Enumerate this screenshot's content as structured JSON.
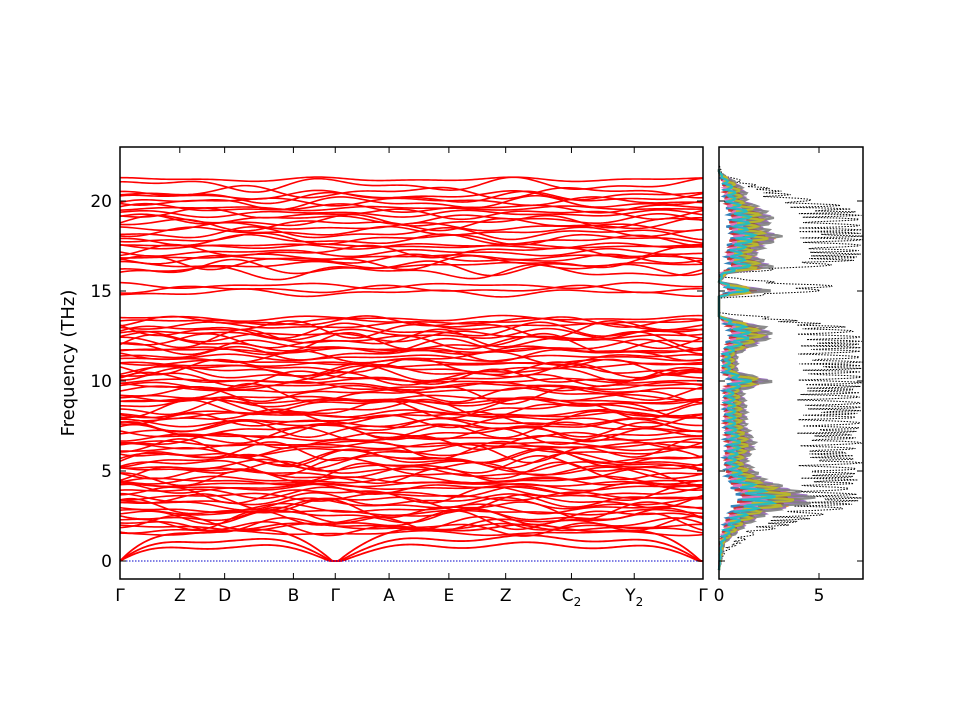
{
  "chart_data": [
    {
      "type": "line",
      "panel": "band-structure",
      "title": "",
      "xlabel": "",
      "ylabel": "Frequency (THz)",
      "ylim": [
        -1.0,
        23.0
      ],
      "yticks": [
        0,
        5,
        10,
        15,
        20
      ],
      "grid": false,
      "line_color": "#ff0000",
      "zero_line_color": "#0000cc",
      "high_symmetry_points": [
        {
          "label": "Γ",
          "sub": "",
          "pos": 0.0
        },
        {
          "label": "Z",
          "sub": "",
          "pos": 1.0
        },
        {
          "label": "D",
          "sub": "",
          "pos": 1.75
        },
        {
          "label": "B",
          "sub": "",
          "pos": 2.9
        },
        {
          "label": "Γ",
          "sub": "",
          "pos": 3.6
        },
        {
          "label": "A",
          "sub": "",
          "pos": 4.5
        },
        {
          "label": "E",
          "sub": "",
          "pos": 5.5
        },
        {
          "label": "Z",
          "sub": "",
          "pos": 6.45
        },
        {
          "label": "C",
          "sub": "2",
          "pos": 7.55
        },
        {
          "label": "Y",
          "sub": "2",
          "pos": 8.6
        },
        {
          "label": "Γ",
          "sub": "",
          "pos": 9.75
        }
      ],
      "bands": {
        "acoustic_max": [
          1.9,
          1.3,
          0.9
        ],
        "low_band_range": [
          1.5,
          13.5
        ],
        "gap": [
          13.5,
          14.7
        ],
        "mid_band_range": [
          14.7,
          15.5
        ],
        "high_band_range": [
          16.0,
          21.6
        ],
        "sample_band_levels": [
          1.8,
          2.1,
          2.5,
          2.9,
          3.3,
          3.7,
          4.1,
          4.5,
          4.9,
          5.3,
          5.7,
          6.1,
          6.5,
          6.9,
          7.3,
          7.7,
          8.1,
          8.5,
          8.9,
          9.3,
          9.7,
          10.1,
          10.5,
          10.9,
          11.3,
          11.7,
          12.1,
          12.5,
          12.9,
          13.3,
          14.9,
          15.1,
          15.3,
          16.3,
          16.6,
          16.9,
          17.2,
          17.5,
          17.9,
          18.3,
          18.7,
          19.0,
          19.3,
          19.6,
          19.9,
          20.2,
          20.5,
          20.9,
          21.2
        ]
      }
    },
    {
      "type": "line",
      "panel": "density-of-states",
      "title": "",
      "xlabel": "",
      "ylabel": "",
      "xlim": [
        0,
        7.2
      ],
      "xticks": [
        0,
        5
      ],
      "ylim": [
        -1.0,
        23.0
      ],
      "grid": false,
      "total_line_color": "#000000",
      "series_colors": [
        "#1f77b4",
        "#ff7f0e",
        "#2ca02c",
        "#d62728",
        "#9467bd",
        "#8c564b",
        "#e377c2",
        "#7f7f7f",
        "#bcbd22",
        "#17becf"
      ],
      "total_dos_profile": [
        [
          -0.5,
          0.0
        ],
        [
          0.5,
          0.3
        ],
        [
          1.5,
          1.8
        ],
        [
          2.0,
          3.5
        ],
        [
          2.5,
          5.0
        ],
        [
          3.0,
          6.5
        ],
        [
          3.5,
          7.2
        ],
        [
          4.0,
          6.5
        ],
        [
          4.5,
          7.0
        ],
        [
          5.0,
          6.8
        ],
        [
          5.5,
          7.2
        ],
        [
          6.0,
          6.5
        ],
        [
          6.5,
          7.2
        ],
        [
          7.0,
          6.8
        ],
        [
          7.5,
          7.2
        ],
        [
          8.0,
          6.9
        ],
        [
          8.5,
          7.2
        ],
        [
          9.0,
          7.1
        ],
        [
          9.5,
          7.0
        ],
        [
          10.0,
          7.2
        ],
        [
          10.5,
          7.1
        ],
        [
          11.0,
          7.2
        ],
        [
          11.5,
          7.0
        ],
        [
          12.0,
          7.2
        ],
        [
          12.5,
          7.1
        ],
        [
          13.0,
          6.5
        ],
        [
          13.5,
          3.0
        ],
        [
          13.8,
          0.0
        ],
        [
          14.6,
          0.0
        ],
        [
          14.8,
          3.0
        ],
        [
          15.2,
          7.0
        ],
        [
          15.5,
          3.0
        ],
        [
          15.8,
          0.0
        ],
        [
          16.0,
          0.5
        ],
        [
          16.3,
          5.0
        ],
        [
          16.8,
          7.2
        ],
        [
          17.3,
          7.0
        ],
        [
          17.8,
          7.2
        ],
        [
          18.3,
          7.2
        ],
        [
          18.8,
          7.0
        ],
        [
          19.3,
          7.2
        ],
        [
          19.8,
          6.0
        ],
        [
          20.2,
          4.0
        ],
        [
          20.6,
          3.0
        ],
        [
          21.0,
          1.5
        ],
        [
          21.5,
          0.2
        ],
        [
          22.0,
          0.0
        ]
      ],
      "partial_dos_envelope": [
        [
          -0.5,
          0.0
        ],
        [
          1.0,
          0.3
        ],
        [
          2.0,
          1.5
        ],
        [
          2.8,
          3.0
        ],
        [
          3.2,
          5.0
        ],
        [
          3.6,
          5.2
        ],
        [
          4.0,
          4.0
        ],
        [
          4.5,
          2.5
        ],
        [
          5.5,
          1.5
        ],
        [
          6.5,
          2.0
        ],
        [
          7.5,
          1.5
        ],
        [
          8.5,
          1.5
        ],
        [
          9.5,
          1.3
        ],
        [
          10.0,
          3.0
        ],
        [
          10.5,
          1.0
        ],
        [
          11.5,
          1.0
        ],
        [
          12.5,
          3.0
        ],
        [
          13.0,
          2.5
        ],
        [
          13.6,
          0.0
        ],
        [
          14.7,
          0.0
        ],
        [
          15.0,
          3.0
        ],
        [
          15.5,
          0.0
        ],
        [
          16.0,
          0.5
        ],
        [
          16.3,
          3.0
        ],
        [
          17.0,
          2.0
        ],
        [
          17.5,
          2.5
        ],
        [
          18.0,
          3.5
        ],
        [
          18.5,
          2.5
        ],
        [
          19.0,
          3.0
        ],
        [
          19.5,
          2.5
        ],
        [
          20.0,
          1.5
        ],
        [
          20.5,
          1.5
        ],
        [
          21.0,
          1.0
        ],
        [
          21.6,
          0.0
        ]
      ]
    }
  ]
}
